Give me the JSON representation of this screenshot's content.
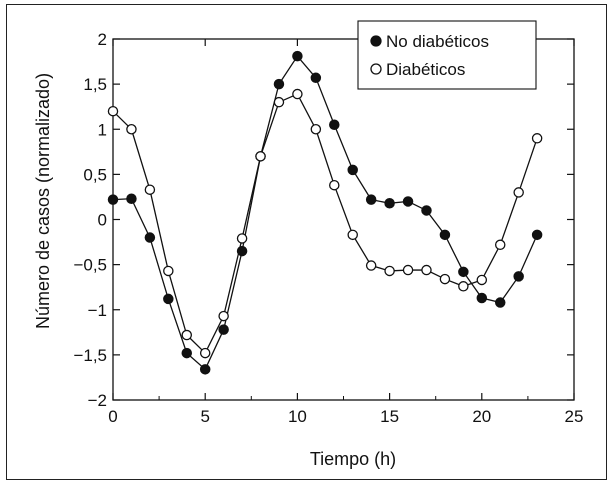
{
  "chart_data": {
    "type": "line",
    "xlabel": "Tiempo (h)",
    "ylabel": "Número de casos (normalizado)",
    "xlim": [
      0,
      25
    ],
    "ylim": [
      -2,
      2
    ],
    "xticks": [
      0,
      5,
      10,
      15,
      20,
      25
    ],
    "yticks": [
      -2,
      -1.5,
      -1,
      -0.5,
      0,
      0.5,
      1,
      1.5,
      2
    ],
    "ytick_labels": [
      "−2",
      "−1,5",
      "−1",
      "−0,5",
      "0",
      "0,5",
      "1",
      "1,5",
      "2"
    ],
    "grid": false,
    "legend_position": "top-right",
    "series": [
      {
        "name": "No diabéticos",
        "marker": "filled-circle",
        "color": "#111111",
        "x": [
          0,
          1,
          2,
          3,
          4,
          5,
          6,
          7,
          8,
          9,
          10,
          11,
          12,
          13,
          14,
          15,
          16,
          17,
          18,
          19,
          20,
          21,
          22,
          23
        ],
        "y": [
          0.22,
          0.23,
          -0.2,
          -0.88,
          -1.48,
          -1.66,
          -1.22,
          -0.35,
          0.7,
          1.5,
          1.81,
          1.57,
          1.05,
          0.55,
          0.22,
          0.18,
          0.2,
          0.1,
          -0.17,
          -0.58,
          -0.87,
          -0.92,
          -0.63,
          -0.17
        ]
      },
      {
        "name": "Diabéticos",
        "marker": "open-circle",
        "color": "#111111",
        "x": [
          0,
          1,
          2,
          3,
          4,
          5,
          6,
          7,
          8,
          9,
          10,
          11,
          12,
          13,
          14,
          15,
          16,
          17,
          18,
          19,
          20,
          21,
          22,
          23
        ],
        "y": [
          1.2,
          1.0,
          0.33,
          -0.57,
          -1.28,
          -1.48,
          -1.07,
          -0.21,
          0.7,
          1.3,
          1.39,
          1.0,
          0.38,
          -0.17,
          -0.51,
          -0.57,
          -0.56,
          -0.56,
          -0.66,
          -0.74,
          -0.67,
          -0.28,
          0.3,
          0.9
        ]
      }
    ]
  }
}
